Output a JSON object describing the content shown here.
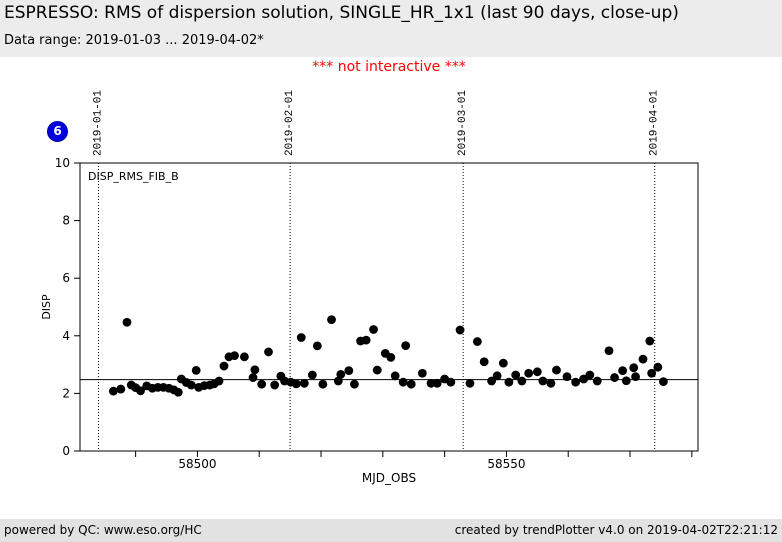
{
  "header": {
    "title": "ESPRESSO: RMS of dispersion solution, SINGLE_HR_1x1 (last 90 days, close-up)",
    "subtitle": "Data range: 2019-01-03 ... 2019-04-02*"
  },
  "notice": "*** not interactive ***",
  "badge": {
    "label": "6",
    "color": "#0000e0"
  },
  "footer": {
    "left": "powered by QC: www.eso.org/HC",
    "right": "created by trendPlotter v4.0 on 2019-04-02T22:21:12"
  },
  "colors": {
    "header_bg": "#ececec",
    "footer_bg": "#e2e2e2",
    "notice": "#ff0000",
    "badge": "#0000e0",
    "marker": "#000000"
  },
  "chart_data": {
    "type": "scatter",
    "series_label": "DISP_RMS_FIB_B",
    "xlabel": "MJD_OBS",
    "ylabel": "DISP",
    "xlim": [
      58481,
      58581
    ],
    "ylim": [
      0,
      10
    ],
    "y_ticks": [
      0,
      2,
      4,
      6,
      8,
      10
    ],
    "x_major_ticks": [
      58500,
      58550
    ],
    "x_minor_tick_interval": 10,
    "grid": "vertical-dotted-at-month-starts",
    "legend": "none",
    "date_gridlines": [
      {
        "mjd": 58484,
        "label": "2019-01-01"
      },
      {
        "mjd": 58515,
        "label": "2019-02-01"
      },
      {
        "mjd": 58543,
        "label": "2019-03-01"
      },
      {
        "mjd": 58574,
        "label": "2019-04-01"
      }
    ],
    "reference_line_y": 2.48,
    "marker": {
      "shape": "circle",
      "radius_px": 4.4,
      "color": "#000000"
    },
    "points": [
      [
        58486.4,
        2.08
      ],
      [
        58487.6,
        2.15
      ],
      [
        58488.6,
        4.47
      ],
      [
        58489.3,
        2.29
      ],
      [
        58490.0,
        2.2
      ],
      [
        58490.8,
        2.09
      ],
      [
        58491.8,
        2.26
      ],
      [
        58492.7,
        2.18
      ],
      [
        58493.6,
        2.21
      ],
      [
        58494.5,
        2.21
      ],
      [
        58495.4,
        2.18
      ],
      [
        58496.2,
        2.12
      ],
      [
        58496.9,
        2.04
      ],
      [
        58497.4,
        2.5
      ],
      [
        58498.2,
        2.38
      ],
      [
        58499.0,
        2.29
      ],
      [
        58499.8,
        2.8
      ],
      [
        58500.2,
        2.21
      ],
      [
        58501.1,
        2.27
      ],
      [
        58502.0,
        2.29
      ],
      [
        58502.7,
        2.33
      ],
      [
        58503.5,
        2.43
      ],
      [
        58504.3,
        2.95
      ],
      [
        58505.1,
        3.27
      ],
      [
        58506.0,
        3.31
      ],
      [
        58507.6,
        3.27
      ],
      [
        58509.0,
        2.55
      ],
      [
        58509.3,
        2.82
      ],
      [
        58510.4,
        2.32
      ],
      [
        58511.5,
        3.44
      ],
      [
        58512.5,
        2.29
      ],
      [
        58513.5,
        2.6
      ],
      [
        58514.1,
        2.43
      ],
      [
        58515.1,
        2.39
      ],
      [
        58516.0,
        2.33
      ],
      [
        58516.8,
        3.94
      ],
      [
        58517.3,
        2.35
      ],
      [
        58518.6,
        2.64
      ],
      [
        58519.4,
        3.65
      ],
      [
        58520.3,
        2.32
      ],
      [
        58521.7,
        4.56
      ],
      [
        58522.8,
        2.43
      ],
      [
        58523.2,
        2.66
      ],
      [
        58524.5,
        2.79
      ],
      [
        58525.4,
        2.32
      ],
      [
        58526.4,
        3.82
      ],
      [
        58527.3,
        3.85
      ],
      [
        58528.5,
        4.22
      ],
      [
        58529.1,
        2.81
      ],
      [
        58530.4,
        3.39
      ],
      [
        58531.3,
        3.25
      ],
      [
        58532.0,
        2.61
      ],
      [
        58533.3,
        2.39
      ],
      [
        58533.7,
        3.66
      ],
      [
        58534.6,
        2.32
      ],
      [
        58536.4,
        2.7
      ],
      [
        58537.8,
        2.35
      ],
      [
        58538.8,
        2.35
      ],
      [
        58540.0,
        2.5
      ],
      [
        58541.0,
        2.39
      ],
      [
        58542.5,
        4.2
      ],
      [
        58544.1,
        2.35
      ],
      [
        58545.3,
        3.8
      ],
      [
        58546.4,
        3.1
      ],
      [
        58547.6,
        2.43
      ],
      [
        58548.5,
        2.61
      ],
      [
        58549.5,
        3.05
      ],
      [
        58550.4,
        2.39
      ],
      [
        58551.5,
        2.64
      ],
      [
        58552.5,
        2.43
      ],
      [
        58553.6,
        2.7
      ],
      [
        58555.0,
        2.75
      ],
      [
        58555.9,
        2.43
      ],
      [
        58557.2,
        2.35
      ],
      [
        58558.1,
        2.81
      ],
      [
        58559.8,
        2.58
      ],
      [
        58561.2,
        2.39
      ],
      [
        58562.5,
        2.5
      ],
      [
        58563.5,
        2.64
      ],
      [
        58564.7,
        2.43
      ],
      [
        58566.6,
        3.48
      ],
      [
        58567.5,
        2.55
      ],
      [
        58568.8,
        2.79
      ],
      [
        58569.4,
        2.44
      ],
      [
        58570.6,
        2.89
      ],
      [
        58570.9,
        2.58
      ],
      [
        58572.1,
        3.19
      ],
      [
        58573.2,
        3.82
      ],
      [
        58573.5,
        2.7
      ],
      [
        58574.5,
        2.91
      ],
      [
        58575.4,
        2.41
      ]
    ]
  }
}
